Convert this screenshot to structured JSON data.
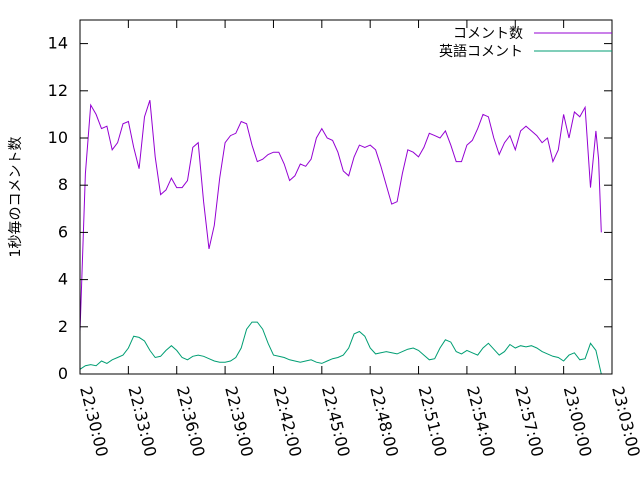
{
  "chart_data": {
    "type": "line",
    "title": "",
    "xlabel": "",
    "ylabel": "1秒毎のコメント数",
    "xlim": [
      "22:30:00",
      "23:03:00"
    ],
    "ylim": [
      0,
      15
    ],
    "x_ticks": [
      "22:30:00",
      "22:33:00",
      "22:36:00",
      "22:39:00",
      "22:42:00",
      "22:45:00",
      "22:48:00",
      "22:51:00",
      "22:54:00",
      "22:57:00",
      "23:00:00",
      "23:03:00"
    ],
    "y_ticks": [
      0,
      2,
      4,
      6,
      8,
      10,
      12,
      14
    ],
    "legend_position": "top-right",
    "grid": false,
    "series": [
      {
        "name": "コメント数",
        "color": "#9400d3",
        "x": [
          "22:30:00",
          "22:30:20",
          "22:30:40",
          "22:31:00",
          "22:31:20",
          "22:31:40",
          "22:32:00",
          "22:32:20",
          "22:32:40",
          "22:33:00",
          "22:33:20",
          "22:33:40",
          "22:34:00",
          "22:34:20",
          "22:34:40",
          "22:35:00",
          "22:35:20",
          "22:35:40",
          "22:36:00",
          "22:36:20",
          "22:36:40",
          "22:37:00",
          "22:37:20",
          "22:37:40",
          "22:38:00",
          "22:38:20",
          "22:38:40",
          "22:39:00",
          "22:39:20",
          "22:39:40",
          "22:40:00",
          "22:40:20",
          "22:40:40",
          "22:41:00",
          "22:41:20",
          "22:41:40",
          "22:42:00",
          "22:42:20",
          "22:42:40",
          "22:43:00",
          "22:43:20",
          "22:43:40",
          "22:44:00",
          "22:44:20",
          "22:44:40",
          "22:45:00",
          "22:45:20",
          "22:45:40",
          "22:46:00",
          "22:46:20",
          "22:46:40",
          "22:47:00",
          "22:47:20",
          "22:47:40",
          "22:48:00",
          "22:48:20",
          "22:48:40",
          "22:49:00",
          "22:49:20",
          "22:49:40",
          "22:50:00",
          "22:50:20",
          "22:50:40",
          "22:51:00",
          "22:51:20",
          "22:51:40",
          "22:52:00",
          "22:52:20",
          "22:52:40",
          "22:53:00",
          "22:53:20",
          "22:53:40",
          "22:54:00",
          "22:54:20",
          "22:54:40",
          "22:55:00",
          "22:55:20",
          "22:55:40",
          "22:56:00",
          "22:56:20",
          "22:56:40",
          "22:57:00",
          "22:57:20",
          "22:57:40",
          "22:58:00",
          "22:58:20",
          "22:58:40",
          "22:59:00",
          "22:59:20",
          "22:59:40",
          "23:00:00",
          "23:00:20",
          "23:00:40",
          "23:01:00",
          "23:01:20",
          "23:01:40",
          "23:02:00",
          "23:02:10",
          "23:02:20"
        ],
        "y": [
          1.8,
          8.5,
          11.4,
          11.0,
          10.4,
          10.5,
          9.5,
          9.8,
          10.6,
          10.7,
          9.6,
          8.7,
          10.9,
          11.6,
          9.2,
          7.6,
          7.8,
          8.3,
          7.9,
          7.9,
          8.2,
          9.6,
          9.8,
          7.3,
          5.3,
          6.3,
          8.3,
          9.8,
          10.1,
          10.2,
          10.7,
          10.6,
          9.7,
          9.0,
          9.1,
          9.3,
          9.4,
          9.4,
          8.9,
          8.2,
          8.4,
          8.9,
          8.8,
          9.1,
          10.0,
          10.4,
          10.0,
          9.9,
          9.4,
          8.6,
          8.4,
          9.2,
          9.7,
          9.6,
          9.7,
          9.5,
          8.8,
          8.0,
          7.2,
          7.3,
          8.5,
          9.5,
          9.4,
          9.2,
          9.6,
          10.2,
          10.1,
          10.0,
          10.3,
          9.7,
          9.0,
          9.0,
          9.7,
          9.9,
          10.4,
          11.0,
          10.9,
          10.0,
          9.3,
          9.8,
          10.1,
          9.5,
          10.3,
          10.5,
          10.3,
          10.1,
          9.8,
          10.0,
          9.0,
          9.5,
          11.0,
          10.0,
          11.1,
          10.9,
          11.3,
          7.9,
          10.3,
          9.1,
          6.0
        ]
      },
      {
        "name": "英語コメント",
        "color": "#009e73",
        "x": [
          "22:30:00",
          "22:30:20",
          "22:30:40",
          "22:31:00",
          "22:31:20",
          "22:31:40",
          "22:32:00",
          "22:32:20",
          "22:32:40",
          "22:33:00",
          "22:33:20",
          "22:33:40",
          "22:34:00",
          "22:34:20",
          "22:34:40",
          "22:35:00",
          "22:35:20",
          "22:35:40",
          "22:36:00",
          "22:36:20",
          "22:36:40",
          "22:37:00",
          "22:37:20",
          "22:37:40",
          "22:38:00",
          "22:38:20",
          "22:38:40",
          "22:39:00",
          "22:39:20",
          "22:39:40",
          "22:40:00",
          "22:40:20",
          "22:40:40",
          "22:41:00",
          "22:41:20",
          "22:41:40",
          "22:42:00",
          "22:42:20",
          "22:42:40",
          "22:43:00",
          "22:43:20",
          "22:43:40",
          "22:44:00",
          "22:44:20",
          "22:44:40",
          "22:45:00",
          "22:45:20",
          "22:45:40",
          "22:46:00",
          "22:46:20",
          "22:46:40",
          "22:47:00",
          "22:47:20",
          "22:47:40",
          "22:48:00",
          "22:48:20",
          "22:48:40",
          "22:49:00",
          "22:49:20",
          "22:49:40",
          "22:50:00",
          "22:50:20",
          "22:50:40",
          "22:51:00",
          "22:51:20",
          "22:51:40",
          "22:52:00",
          "22:52:20",
          "22:52:40",
          "22:53:00",
          "22:53:20",
          "22:53:40",
          "22:54:00",
          "22:54:20",
          "22:54:40",
          "22:55:00",
          "22:55:20",
          "22:55:40",
          "22:56:00",
          "22:56:20",
          "22:56:40",
          "22:57:00",
          "22:57:20",
          "22:57:40",
          "22:58:00",
          "22:58:20",
          "22:58:40",
          "22:59:00",
          "22:59:20",
          "22:59:40",
          "23:00:00",
          "23:00:20",
          "23:00:40",
          "23:01:00",
          "23:01:20",
          "23:01:40",
          "23:02:00",
          "23:02:10",
          "23:02:20"
        ],
        "y": [
          0.2,
          0.35,
          0.4,
          0.35,
          0.55,
          0.45,
          0.6,
          0.7,
          0.8,
          1.1,
          1.6,
          1.55,
          1.4,
          1.0,
          0.7,
          0.75,
          1.0,
          1.2,
          1.0,
          0.7,
          0.6,
          0.75,
          0.8,
          0.75,
          0.65,
          0.55,
          0.5,
          0.5,
          0.55,
          0.7,
          1.1,
          1.9,
          2.2,
          2.2,
          1.9,
          1.3,
          0.8,
          0.75,
          0.7,
          0.6,
          0.55,
          0.5,
          0.55,
          0.6,
          0.5,
          0.45,
          0.55,
          0.65,
          0.7,
          0.8,
          1.1,
          1.7,
          1.8,
          1.6,
          1.1,
          0.85,
          0.9,
          0.95,
          0.9,
          0.85,
          0.95,
          1.05,
          1.1,
          1.0,
          0.8,
          0.6,
          0.65,
          1.1,
          1.45,
          1.35,
          0.95,
          0.85,
          1.0,
          0.9,
          0.8,
          1.1,
          1.3,
          1.05,
          0.8,
          0.95,
          1.25,
          1.1,
          1.2,
          1.15,
          1.2,
          1.1,
          0.95,
          0.85,
          0.75,
          0.7,
          0.55,
          0.8,
          0.9,
          0.6,
          0.65,
          1.3,
          1.0,
          0.5,
          0.0
        ]
      }
    ]
  }
}
